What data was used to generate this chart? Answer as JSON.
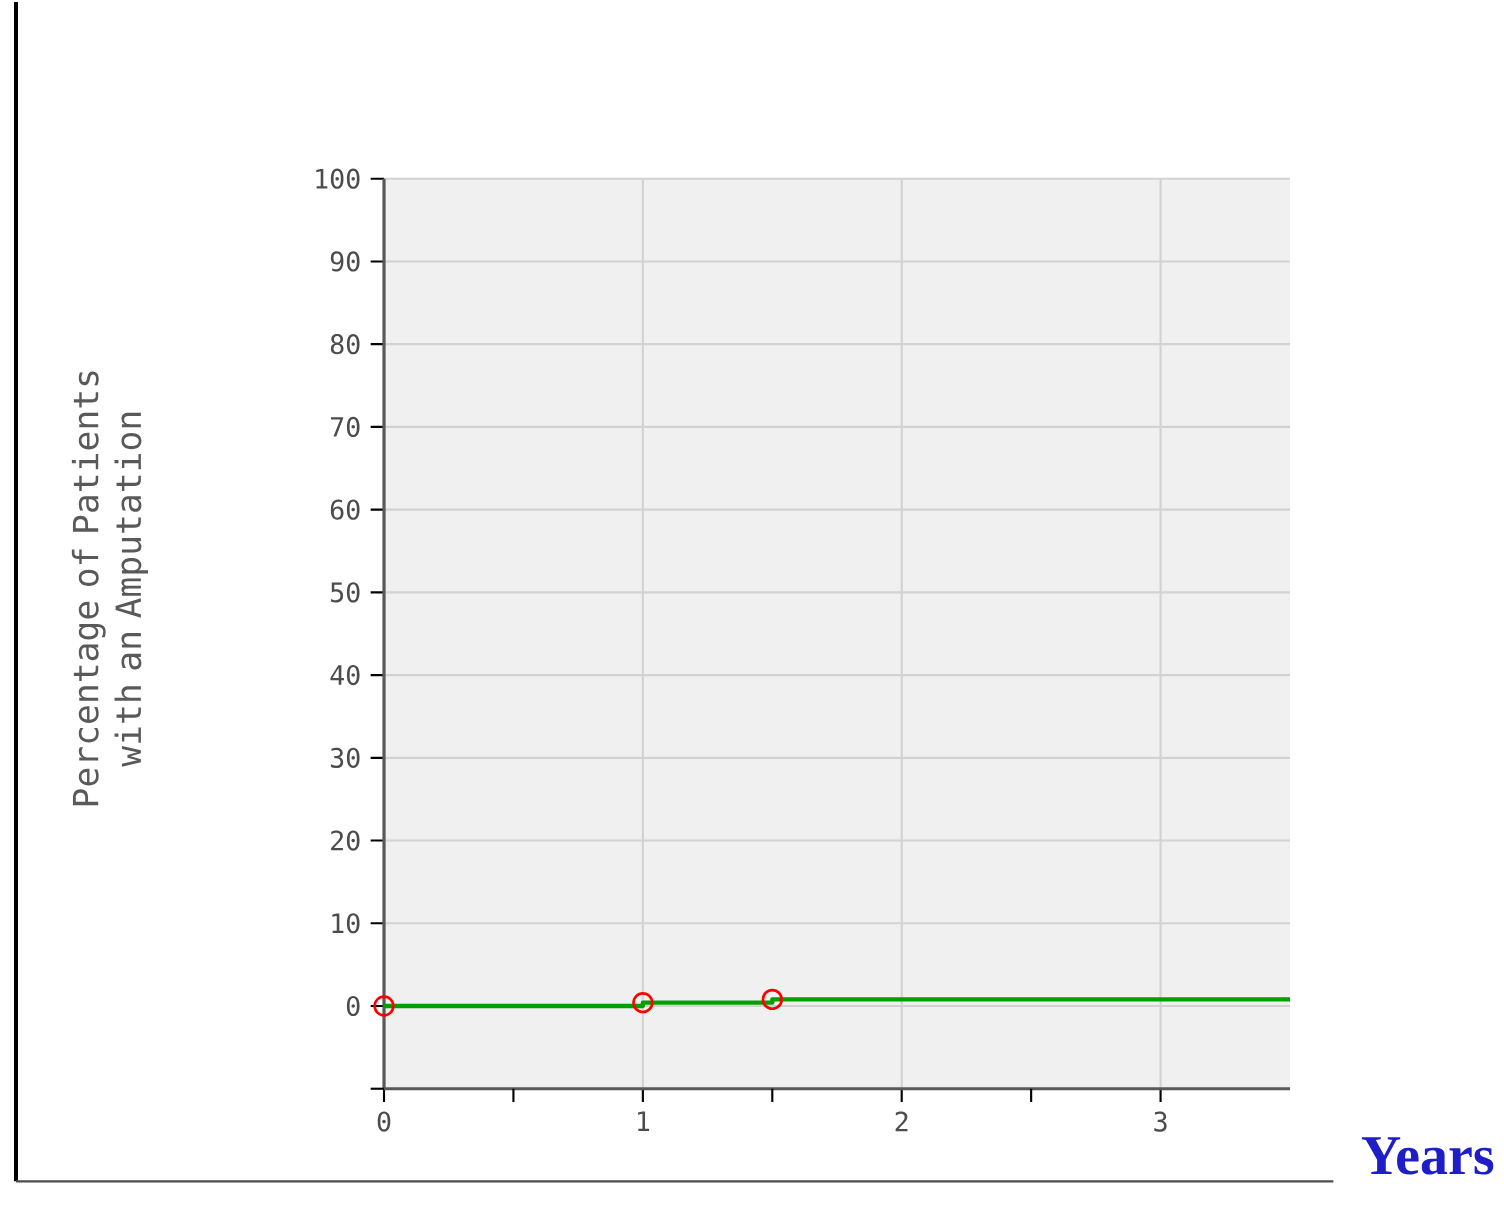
{
  "chart_data": {
    "type": "step",
    "xlabel": "Years",
    "ylabel": "Percentage of Patients with an Amputation",
    "x": [
      0,
      1,
      1.5
    ],
    "series": [
      {
        "color": "#00a000",
        "x": [
          0,
          1,
          1.5,
          3.5
        ],
        "values": [
          0,
          0.4,
          0.8,
          0.8
        ]
      },
      {
        "type": "scatter",
        "color": "#ff0000",
        "values": [
          0,
          0.4,
          0.8
        ],
        "marker": "circle"
      }
    ],
    "xlim": [
      0,
      3.5
    ],
    "ylim": [
      -10,
      100
    ],
    "xticks": [
      0,
      {
        "value": 0.5,
        "label": null
      },
      1,
      {
        "value": 1.5,
        "label": null
      },
      2,
      {
        "value": 2.5,
        "label": null
      },
      3
    ],
    "yticks": [
      {
        "value": -10,
        "label": null
      },
      0,
      10,
      20,
      30,
      40,
      50,
      60,
      70,
      80,
      90,
      100
    ],
    "grid": true
  }
}
